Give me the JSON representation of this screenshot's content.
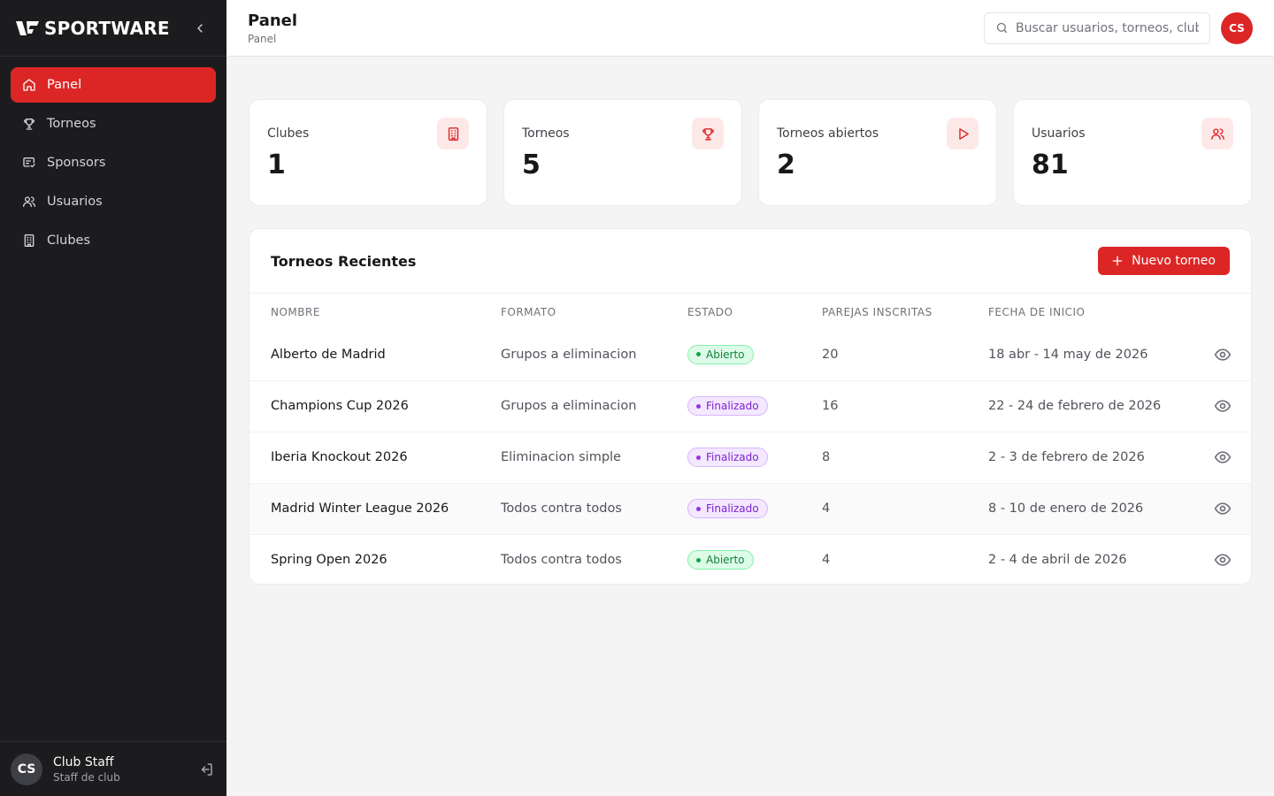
{
  "sidebar": {
    "brand": "SPORTWARE",
    "items": [
      {
        "label": "Panel",
        "icon": "home-icon",
        "active": true
      },
      {
        "label": "Torneos",
        "icon": "trophy-icon",
        "active": false
      },
      {
        "label": "Sponsors",
        "icon": "sponsor-icon",
        "active": false
      },
      {
        "label": "Usuarios",
        "icon": "users-icon",
        "active": false
      },
      {
        "label": "Clubes",
        "icon": "building-icon",
        "active": false
      }
    ],
    "user": {
      "initials": "CS",
      "name": "Club Staff",
      "role": "Staff de club"
    }
  },
  "header": {
    "title": "Panel",
    "breadcrumb": "Panel",
    "search_placeholder": "Buscar usuarios, torneos, clubes...",
    "avatar_initials": "CS"
  },
  "stats": [
    {
      "label": "Clubes",
      "value": "1",
      "icon": "building-icon"
    },
    {
      "label": "Torneos",
      "value": "5",
      "icon": "trophy-icon"
    },
    {
      "label": "Torneos abiertos",
      "value": "2",
      "icon": "play-icon"
    },
    {
      "label": "Usuarios",
      "value": "81",
      "icon": "users-icon"
    }
  ],
  "recent": {
    "title": "Torneos Recientes",
    "new_button": "Nuevo torneo",
    "columns": [
      "NOMBRE",
      "FORMATO",
      "ESTADO",
      "PAREJAS INSCRITAS",
      "FECHA DE INICIO"
    ],
    "rows": [
      {
        "name": "Alberto de Madrid",
        "format": "Grupos a eliminacion",
        "status": "Abierto",
        "pairs": "20",
        "date": "18 abr - 14 may de 2026"
      },
      {
        "name": "Champions Cup 2026",
        "format": "Grupos a eliminacion",
        "status": "Finalizado",
        "pairs": "16",
        "date": "22 - 24 de febrero de 2026"
      },
      {
        "name": "Iberia Knockout 2026",
        "format": "Eliminacion simple",
        "status": "Finalizado",
        "pairs": "8",
        "date": "2 - 3 de febrero de 2026"
      },
      {
        "name": "Madrid Winter League 2026",
        "format": "Todos contra todos",
        "status": "Finalizado",
        "pairs": "4",
        "date": "8 - 10 de enero de 2026"
      },
      {
        "name": "Spring Open 2026",
        "format": "Todos contra todos",
        "status": "Abierto",
        "pairs": "4",
        "date": "2 - 4 de abril de 2026"
      }
    ]
  },
  "colors": {
    "accent": "#dc2626",
    "sidebar_bg": "#1c1c1e",
    "open": "#16a34a",
    "done": "#9333ea"
  }
}
